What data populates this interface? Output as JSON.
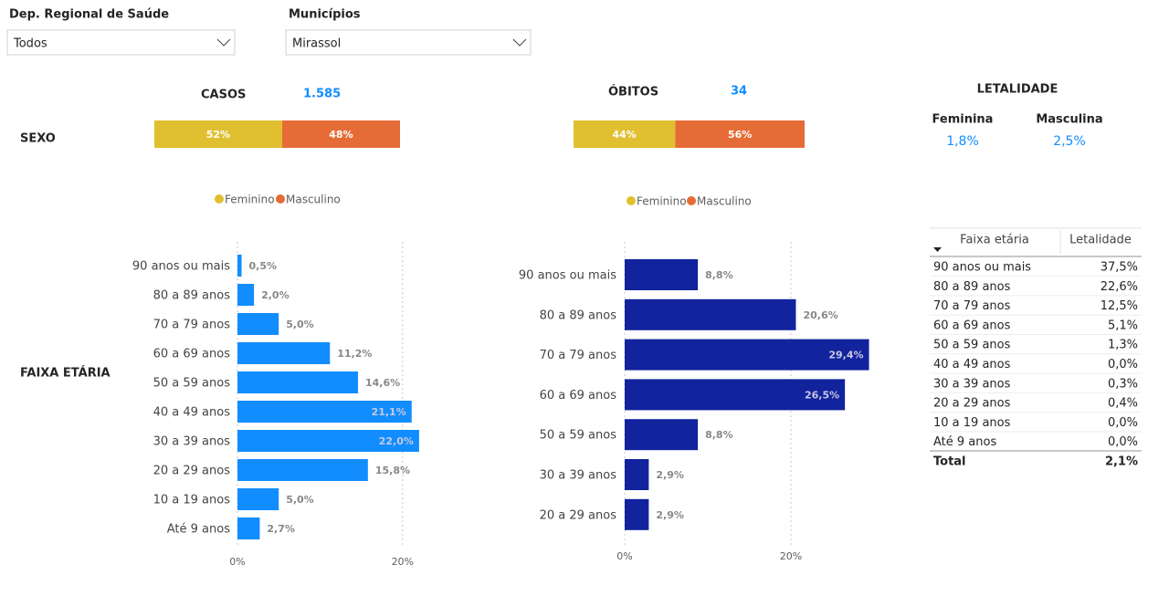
{
  "filters": [
    {
      "label": "Dep. Regional de Saúde",
      "value": "Todos"
    },
    {
      "label": "Municípios",
      "value": "Mirassol"
    }
  ],
  "summary": {
    "casos": {
      "label": "CASOS",
      "value": "1.585"
    },
    "obitos": {
      "label": "ÓBITOS",
      "value": "34"
    }
  },
  "row_labels": {
    "sexo": "SEXO",
    "faixa": "FAIXA ETÁRIA"
  },
  "letalidade": {
    "title": "LETALIDADE",
    "items": [
      {
        "label": "Feminina",
        "value": "1,8%"
      },
      {
        "label": "Masculina",
        "value": "2,5%"
      }
    ]
  },
  "chart_data": [
    {
      "type": "stacked_hbar",
      "categories": [
        null
      ],
      "series": [
        {
          "name": "Feminino",
          "color": "#e0c030",
          "values": [
            52
          ],
          "value_labels": [
            "52%"
          ]
        },
        {
          "name": "Masculino",
          "color": "#e66c37",
          "values": [
            48
          ],
          "value_labels": [
            "48%"
          ]
        }
      ],
      "legend": "bottom"
    },
    {
      "type": "stacked_hbar",
      "categories": [
        null
      ],
      "series": [
        {
          "name": "Feminino",
          "color": "#e0c030",
          "values": [
            44
          ],
          "value_labels": [
            "44%"
          ]
        },
        {
          "name": "Masculino",
          "color": "#e66c37",
          "values": [
            56
          ],
          "value_labels": [
            "56%"
          ]
        }
      ],
      "legend": "bottom"
    },
    {
      "type": "hbar",
      "color": "#118dff",
      "categories": [
        "90 anos ou mais",
        "80 a 89 anos",
        "70 a 79 anos",
        "60 a 69 anos",
        "50 a 59 anos",
        "40 a 49 anos",
        "30 a 39 anos",
        "20 a 29 anos",
        "10 a 19 anos",
        "Até 9 anos"
      ],
      "values": [
        0.5,
        2.0,
        5.0,
        11.2,
        14.6,
        21.1,
        22.0,
        15.8,
        5.0,
        2.7
      ],
      "value_labels": [
        "0,5%",
        "2,0%",
        "5,0%",
        "11,2%",
        "14,6%",
        "21,1%",
        "22,0%",
        "15,8%",
        "5,0%",
        "2,7%"
      ],
      "xlim": [
        0,
        25
      ],
      "xticks": [
        {
          "value": 0,
          "label": "0%"
        },
        {
          "value": 20,
          "label": "20%"
        }
      ],
      "grid": true
    },
    {
      "type": "hbar",
      "color": "#12239e",
      "categories": [
        "90 anos ou mais",
        "80 a 89 anos",
        "70 a 79 anos",
        "60 a 69 anos",
        "50 a 59 anos",
        "30 a 39 anos",
        "20 a 29 anos"
      ],
      "values": [
        8.8,
        20.6,
        29.4,
        26.5,
        8.8,
        2.9,
        2.9
      ],
      "value_labels": [
        "8,8%",
        "20,6%",
        "29,4%",
        "26,5%",
        "8,8%",
        "2,9%",
        "2,9%"
      ],
      "xlim": [
        0,
        30
      ],
      "xticks": [
        {
          "value": 0,
          "label": "0%"
        },
        {
          "value": 20,
          "label": "20%"
        }
      ],
      "grid": true
    }
  ],
  "table": {
    "headers": [
      "Faixa etária",
      "Letalidade"
    ],
    "rows": [
      [
        "90 anos ou mais",
        "37,5%"
      ],
      [
        "80 a 89 anos",
        "22,6%"
      ],
      [
        "70 a 79 anos",
        "12,5%"
      ],
      [
        "60 a 69 anos",
        "5,1%"
      ],
      [
        "50 a 59 anos",
        "1,3%"
      ],
      [
        "40 a 49 anos",
        "0,0%"
      ],
      [
        "30 a 39 anos",
        "0,3%"
      ],
      [
        "20 a 29 anos",
        "0,4%"
      ],
      [
        "10 a 19 anos",
        "0,0%"
      ],
      [
        "Até 9 anos",
        "0,0%"
      ]
    ],
    "total": [
      "Total",
      "2,1%"
    ]
  }
}
